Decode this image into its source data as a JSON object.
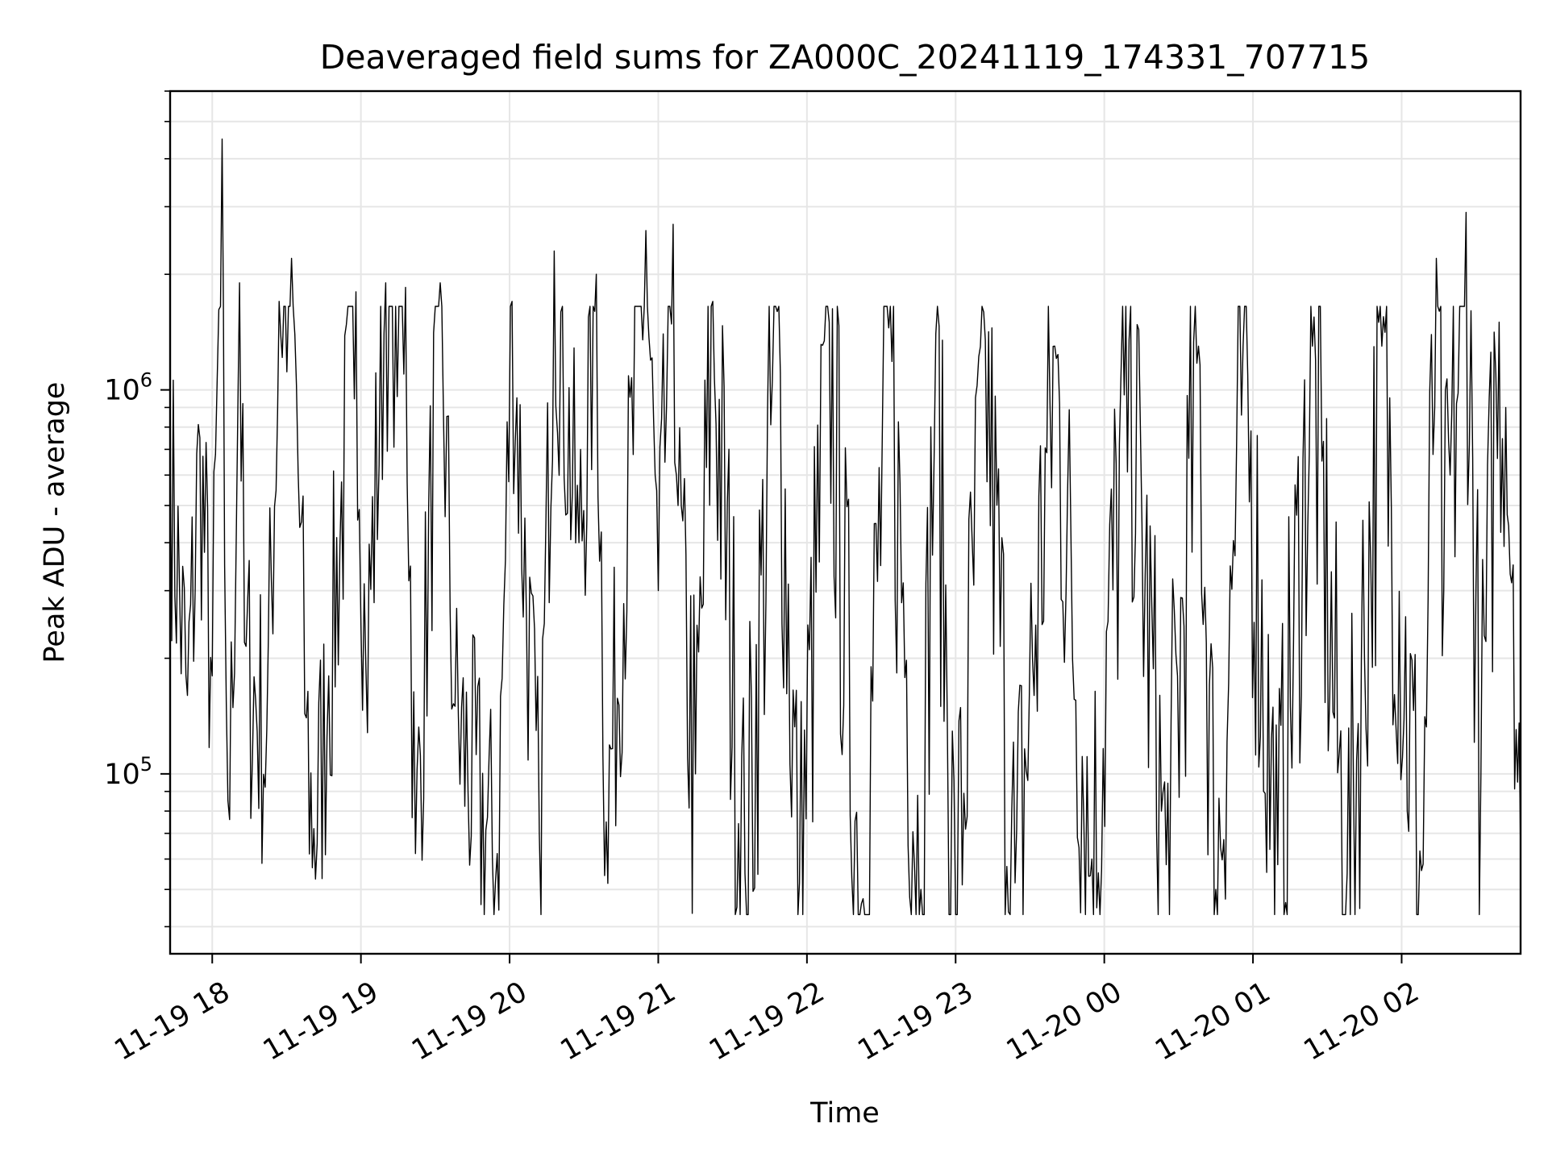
{
  "chart_data": {
    "type": "line",
    "title": "Deaveraged field sums for ZA000C_20241119_174331_707715",
    "xlabel": "Time",
    "ylabel": "Peak ADU - average",
    "yscale": "log",
    "ylim": [
      34000,
      6000000
    ],
    "xlim": [
      "2024-11-19 17:43",
      "2024-11-20 02:48"
    ],
    "grid": true,
    "x_ticks": [
      "2024-11-19 18:00",
      "2024-11-19 19:00",
      "2024-11-19 20:00",
      "2024-11-19 21:00",
      "2024-11-19 22:00",
      "2024-11-19 23:00",
      "2024-11-20 00:00",
      "2024-11-20 01:00",
      "2024-11-20 02:00"
    ],
    "x_tick_labels": [
      "11-19 18",
      "11-19 19",
      "11-19 20",
      "11-19 21",
      "11-19 22",
      "11-19 23",
      "11-20 00",
      "11-20 01",
      "11-20 02"
    ],
    "y_ticks": [
      100000,
      1000000
    ],
    "y_tick_labels": [
      {
        "base": "10",
        "exp": "5"
      },
      {
        "base": "10",
        "exp": "6"
      }
    ],
    "line_color": "#000000",
    "grid_color": "#e6e6e6",
    "series": [
      {
        "x": [
          "2024-11-19 17:43",
          "2024-11-19 17:50",
          "2024-11-19 17:55",
          "2024-11-19 18:00",
          "2024-11-19 18:04",
          "2024-11-19 18:05",
          "2024-11-19 18:07",
          "2024-11-19 18:11",
          "2024-11-19 18:13",
          "2024-11-19 18:22",
          "2024-11-19 18:27",
          "2024-11-19 18:32",
          "2024-11-19 18:38",
          "2024-11-19 18:41",
          "2024-11-19 18:47",
          "2024-11-19 18:58",
          "2024-11-19 19:02",
          "2024-11-19 19:10",
          "2024-11-19 19:18",
          "2024-11-19 19:22",
          "2024-11-19 19:32",
          "2024-11-19 19:38",
          "2024-11-19 19:55",
          "2024-11-19 20:01",
          "2024-11-19 20:12",
          "2024-11-19 20:18",
          "2024-11-19 20:28",
          "2024-11-19 20:35",
          "2024-11-19 20:39",
          "2024-11-19 20:55",
          "2024-11-19 21:00",
          "2024-11-19 21:06",
          "2024-11-19 21:08",
          "2024-11-19 21:15",
          "2024-11-19 21:22",
          "2024-11-19 21:35",
          "2024-11-19 21:48",
          "2024-11-19 21:57",
          "2024-11-19 22:09",
          "2024-11-19 22:22",
          "2024-11-19 22:33",
          "2024-11-19 22:46",
          "2024-11-19 22:52",
          "2024-11-19 23:00",
          "2024-11-19 23:12",
          "2024-11-19 23:24",
          "2024-11-19 23:40",
          "2024-11-19 23:55",
          "2024-11-20 00:10",
          "2024-11-20 00:25",
          "2024-11-20 00:38",
          "2024-11-20 00:45",
          "2024-11-20 00:56",
          "2024-11-20 01:10",
          "2024-11-20 01:24",
          "2024-11-20 01:38",
          "2024-11-20 01:52",
          "2024-11-20 02:08",
          "2024-11-20 02:14",
          "2024-11-20 02:17",
          "2024-11-20 02:26",
          "2024-11-20 02:32",
          "2024-11-20 02:38",
          "2024-11-20 02:42",
          "2024-11-20 02:45",
          "2024-11-20 02:48"
        ],
        "y": [
          700000,
          160000,
          750000,
          180000,
          4500000,
          350000,
          76000,
          1900000,
          220000,
          130000,
          1700000,
          2200000,
          140000,
          72000,
          180000,
          1800000,
          190000,
          1900000,
          1850000,
          62000,
          1900000,
          150000,
          62000,
          1700000,
          70000,
          2300000,
          400000,
          2000000,
          75000,
          2600000,
          300000,
          2700000,
          500000,
          100000,
          1700000,
          55000,
          1600000,
          52000,
          1500000,
          46000,
          1450000,
          50000,
          1400000,
          43000,
          1350000,
          52000,
          1300000,
          60000,
          1350000,
          58000,
          1300000,
          50000,
          1300000,
          58000,
          1300000,
          55000,
          1300000,
          56000,
          2200000,
          300000,
          2900000,
          100000,
          1100000,
          900000,
          350000,
          60000
        ]
      }
    ]
  }
}
